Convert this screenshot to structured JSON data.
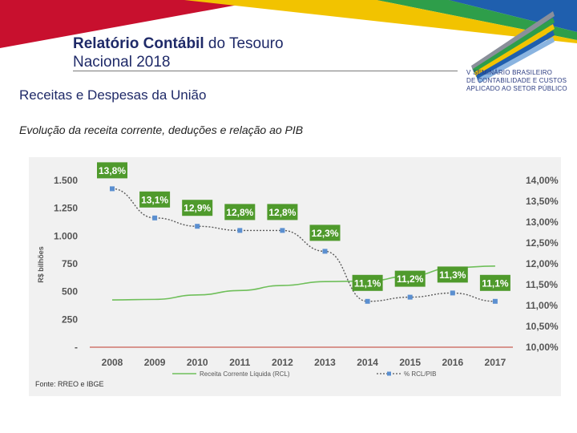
{
  "header": {
    "title_bold": "Relatório Contábil",
    "title_rest": " do Tesouro",
    "title_line2": "Nacional 2018",
    "subtitle": "Receitas e Despesas da União",
    "caption": "Evolução da receita corrente, deduções e relação ao PIB"
  },
  "logo": {
    "line1": "V SEMINÁRIO BRASILEIRO",
    "line2": "DE CONTABILIDADE E CUSTOS",
    "line3": "APLICADO AO SETOR PÚBLICO"
  },
  "colors": {
    "accent_red": "#c8102e",
    "band_green": "#2e9e4a",
    "band_blue": "#1f5fae",
    "rcl_line": "#6fbf5a",
    "ratio_line": "#5a5a5a",
    "ratio_marker": "#5b8fd0",
    "label_bg": "#4f9a2c",
    "zero_line": "#c0392b"
  },
  "chart_data": {
    "type": "line",
    "categories": [
      "2008",
      "2009",
      "2010",
      "2011",
      "2012",
      "2013",
      "2014",
      "2015",
      "2016",
      "2017"
    ],
    "ylabel": "R$ bilhões",
    "ylim": [
      0,
      1500
    ],
    "y_ticks": [
      "-",
      "250",
      "500",
      "750",
      "1.000",
      "1.250",
      "1.500"
    ],
    "y2lim": [
      10,
      14
    ],
    "y2_ticks": [
      "10,00%",
      "10,50%",
      "11,00%",
      "11,50%",
      "12,00%",
      "12,50%",
      "13,00%",
      "13,50%",
      "14,00%"
    ],
    "series": [
      {
        "name": "Receita Corrente Líquida (RCL)",
        "axis": "left",
        "style": "solid",
        "values": [
          425,
          430,
          470,
          510,
          555,
          590,
          595,
          640,
          715,
          730
        ]
      },
      {
        "name": "% RCL/PIB",
        "axis": "right",
        "style": "dotted",
        "values": [
          13.8,
          13.1,
          12.9,
          12.8,
          12.8,
          12.3,
          11.1,
          11.2,
          11.3,
          11.1
        ],
        "labels": [
          "13,8%",
          "13,1%",
          "12,9%",
          "12,8%",
          "12,8%",
          "12,3%",
          "11,1%",
          "11,2%",
          "11,3%",
          "11,1%"
        ]
      }
    ],
    "legend_position": "bottom",
    "grid": false,
    "source": "Fonte: RREO e IBGE"
  }
}
